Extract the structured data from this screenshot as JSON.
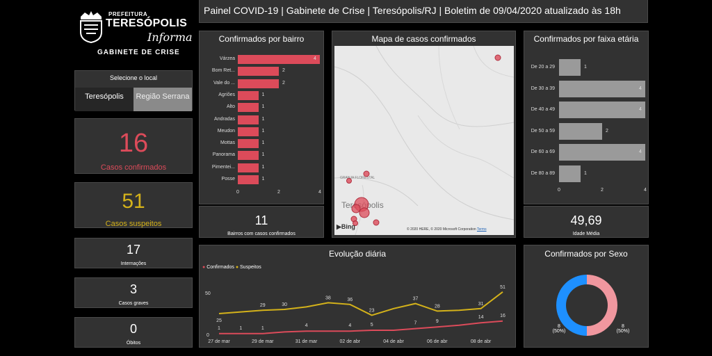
{
  "colors": {
    "confirmed": "#dc4b5a",
    "suspected": "#d4b21a",
    "bar_gray": "#9a9a9a",
    "donut_blue": "#1e90ff",
    "donut_pink": "#f0979f"
  },
  "logo": {
    "prefeitura": "PREFEITURA",
    "city": "TERESÓPOLIS",
    "informa": "Informa",
    "gabinete": "GABINETE DE CRISE"
  },
  "header": {
    "title": "Painel COVID-19 | Gabinete de Crise | Teresópolis/RJ | Boletim de 09/04/2020 atualizado às 18h"
  },
  "selector": {
    "title": "Selecione o local",
    "options": [
      "Teresópolis",
      "Região Serrana"
    ]
  },
  "kpis": {
    "confirmed": {
      "value": "16",
      "label": "Casos confirmados"
    },
    "suspected": {
      "value": "51",
      "label": "Casos suspeitos"
    },
    "hospitalized": {
      "value": "17",
      "label": "Internações"
    },
    "severe": {
      "value": "3",
      "label": "Casos graves"
    },
    "deaths": {
      "value": "0",
      "label": "Óbitos"
    }
  },
  "bairro_panel": {
    "title": "Confirmados por bairro",
    "categories": [
      "Várzea",
      "Bom Ret...",
      "Vale do ...",
      "Agriões",
      "Alto",
      "Andradas",
      "Meudon",
      "Mottas",
      "Panorama",
      "Pimentei...",
      "Posse"
    ],
    "values": [
      4,
      2,
      2,
      1,
      1,
      1,
      1,
      1,
      1,
      1,
      1
    ],
    "value_labels": [
      "4",
      "2",
      "2",
      "1",
      "1",
      "1",
      "1",
      "1",
      "1",
      "1",
      "1"
    ],
    "axis_ticks": [
      "0",
      "2",
      "4"
    ],
    "footer_value": "11",
    "footer_label": "Bairros com casos confirmados"
  },
  "map_panel": {
    "title": "Mapa de casos confirmados",
    "place_label": "Teresópolis",
    "place_label2": "GRANJA FLORESTAL",
    "bing": "Bing",
    "copyright": "© 2020 HERE, © 2020 Microsoft Corporation",
    "terms": "Terms"
  },
  "age_panel": {
    "title": "Confirmados por faixa etária",
    "categories": [
      "De 20 a 29",
      "De 30 a 39",
      "De 40 a 49",
      "De 50 a 59",
      "De 60 a 69",
      "De 80 a 89"
    ],
    "values": [
      1,
      4,
      4,
      2,
      4,
      1
    ],
    "value_labels": [
      "1",
      "4",
      "4",
      "2",
      "4",
      "1"
    ],
    "axis_ticks": [
      "0",
      "2",
      "4"
    ],
    "footer_value": "49,69",
    "footer_label": "Idade Média"
  },
  "daily_panel": {
    "title": "Evolução diária",
    "legend": [
      "Confirmados",
      "Suspeitos"
    ],
    "y_ticks": [
      "50",
      "0"
    ],
    "x_ticks": [
      "27 de mar",
      "29 de mar",
      "31 de mar",
      "02 de abr",
      "04 de abr",
      "06 de abr",
      "08 de abr"
    ]
  },
  "chart_data": {
    "type": "line",
    "title": "Evolução diária",
    "x": [
      "27 de mar",
      "28 de mar",
      "29 de mar",
      "30 de mar",
      "31 de mar",
      "01 de abr",
      "02 de abr",
      "03 de abr",
      "04 de abr",
      "05 de abr",
      "06 de abr",
      "07 de abr",
      "08 de abr",
      "09 de abr"
    ],
    "series": [
      {
        "name": "Confirmados",
        "values": [
          1,
          1,
          1,
          3,
          4,
          4,
          4,
          5,
          5,
          7,
          9,
          11,
          14,
          16
        ],
        "labels_shown": [
          1,
          1,
          1,
          null,
          4,
          null,
          4,
          5,
          null,
          7,
          9,
          null,
          14,
          16
        ]
      },
      {
        "name": "Suspeitos",
        "values": [
          25,
          27,
          29,
          30,
          33,
          38,
          36,
          23,
          31,
          37,
          28,
          29,
          31,
          51
        ],
        "labels_shown": [
          25,
          null,
          29,
          30,
          null,
          38,
          36,
          23,
          null,
          37,
          28,
          null,
          31,
          51
        ]
      }
    ],
    "ylim": [
      0,
      55
    ]
  },
  "sex_panel": {
    "title": "Confirmados por Sexo",
    "slices": [
      {
        "value": 8,
        "label": "8",
        "pct": "(50%)"
      },
      {
        "value": 8,
        "label": "8",
        "pct": "(50%)"
      }
    ]
  }
}
